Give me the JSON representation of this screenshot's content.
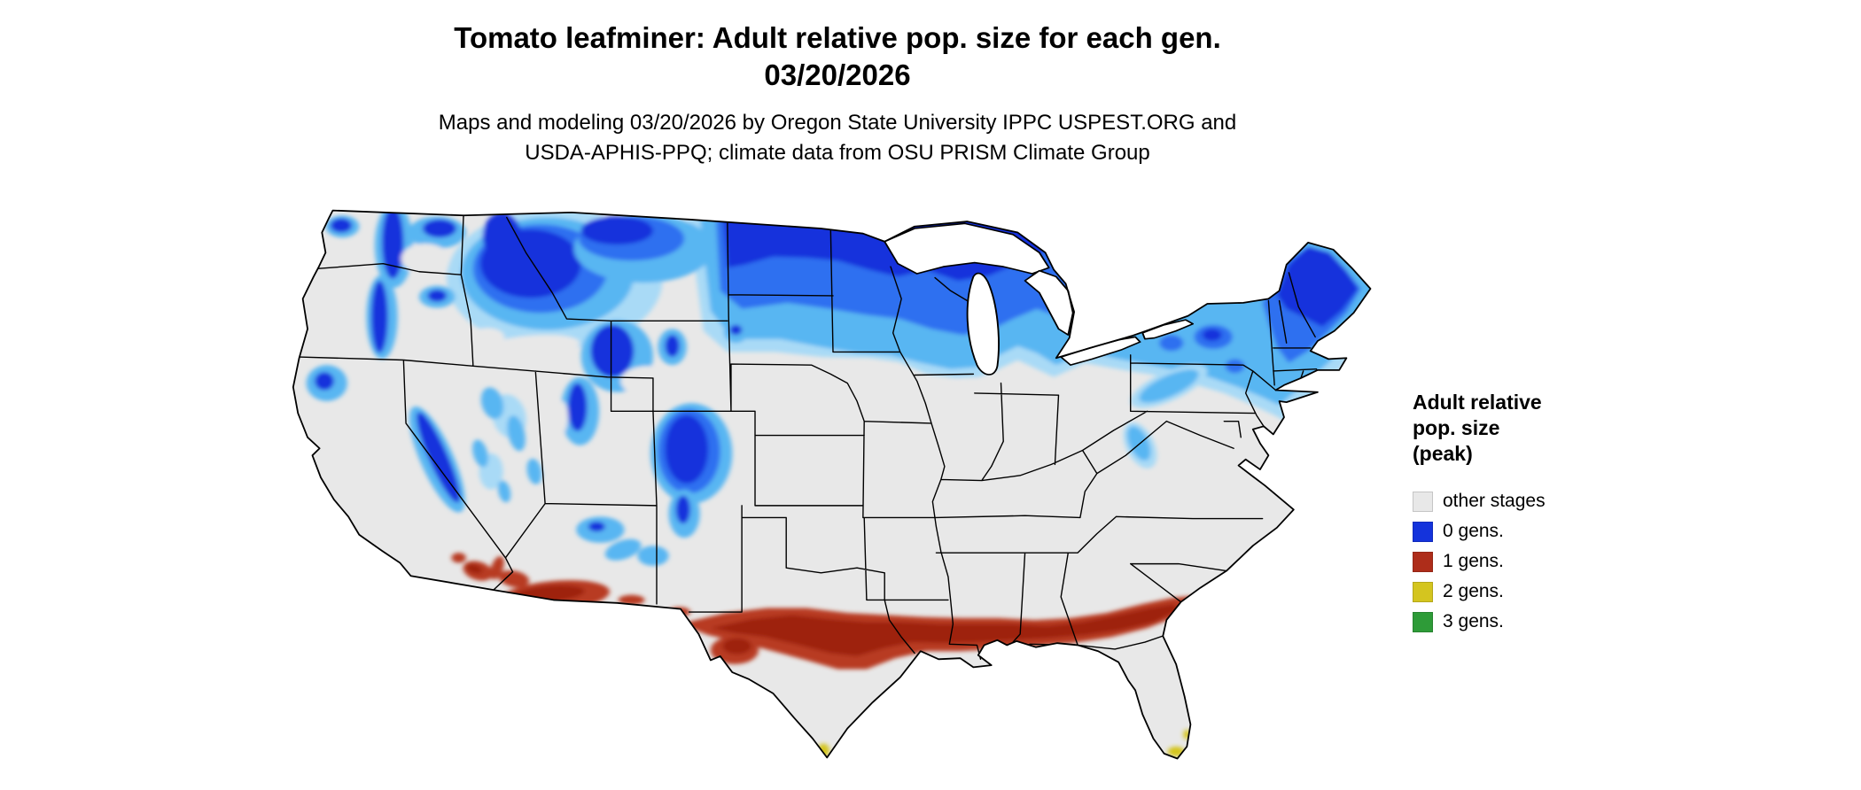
{
  "title": {
    "line1": "Tomato leafminer: Adult relative pop. size for each gen.",
    "line2": "03/20/2026"
  },
  "subtitle": {
    "line1": "Maps and modeling 03/20/2026 by Oregon State University IPPC USPEST.ORG and",
    "line2": "USDA-APHIS-PPQ; climate data from OSU PRISM Climate Group"
  },
  "legend": {
    "title_lines": [
      "Adult relative",
      "pop. size",
      "(peak)"
    ],
    "items": [
      {
        "label": "other stages",
        "color": "#e8e8e8"
      },
      {
        "label": "0 gens.",
        "color": "#1433dc"
      },
      {
        "label": "1 gens.",
        "color": "#ae2d1a"
      },
      {
        "label": "2 gens.",
        "color": "#d4c51f"
      },
      {
        "label": "3 gens.",
        "color": "#2e9b38"
      }
    ]
  },
  "map": {
    "name": "Continental United States, Tomato leafminer adult relative population size by generation",
    "palette": {
      "base": "#e8e8e8",
      "blue_dark": "#1433dc",
      "blue_med": "#2f6ff0",
      "blue_light": "#58b6f2",
      "blue_pale": "#a9daf6",
      "red_dark": "#9e2410",
      "red_mid": "#b83b20",
      "yellow": "#d4c51f",
      "green": "#2e9b38",
      "outline": "#000000",
      "water": "#ffffff"
    }
  }
}
